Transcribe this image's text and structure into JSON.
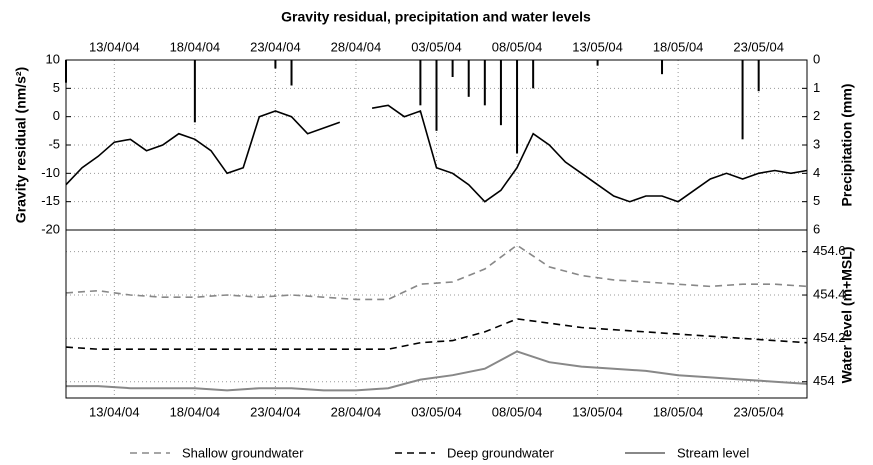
{
  "chart_data": [
    {
      "type": "line",
      "title": "Gravity residual, precipitation and water levels",
      "y_label": "Gravity residual (nm/s²)",
      "y2_label": "Precipitation (mm)",
      "x": [
        "2004-04-10",
        "2004-04-11",
        "2004-04-12",
        "2004-04-13",
        "2004-04-14",
        "2004-04-15",
        "2004-04-16",
        "2004-04-17",
        "2004-04-18",
        "2004-04-19",
        "2004-04-20",
        "2004-04-21",
        "2004-04-22",
        "2004-04-23",
        "2004-04-24",
        "2004-04-25",
        "2004-04-26",
        "2004-04-27",
        "2004-04-28",
        "2004-04-29",
        "2004-04-30",
        "2004-05-01",
        "2004-05-02",
        "2004-05-03",
        "2004-05-04",
        "2004-05-05",
        "2004-05-06",
        "2004-05-07",
        "2004-05-08",
        "2004-05-09",
        "2004-05-10",
        "2004-05-11",
        "2004-05-12",
        "2004-05-13",
        "2004-05-14",
        "2004-05-15",
        "2004-05-16",
        "2004-05-17",
        "2004-05-18",
        "2004-05-19",
        "2004-05-20",
        "2004-05-21",
        "2004-05-22",
        "2004-05-23",
        "2004-05-24",
        "2004-05-25",
        "2004-05-26"
      ],
      "series": [
        {
          "color": "#000000",
          "values": [
            -12,
            -9,
            -7,
            -4.5,
            -4,
            -6,
            -5,
            -3,
            -4,
            -6,
            -10,
            -9,
            0,
            1,
            0,
            -3,
            -2,
            -1,
            null,
            1.5,
            2,
            0,
            1,
            -9,
            -10,
            -12,
            -15,
            -13,
            -9,
            -3,
            -5,
            -8,
            -10,
            -12,
            -14,
            -15,
            -14,
            -14,
            -15,
            -13,
            -11,
            -10,
            -11,
            -10,
            -9.5,
            -10,
            -9.5
          ]
        },
        {
          "type": "bar",
          "axis": "y2",
          "color": "#000000",
          "x": [
            "2004-04-10",
            "2004-04-18",
            "2004-04-23",
            "2004-04-24",
            "2004-05-02",
            "2004-05-03",
            "2004-05-04",
            "2004-05-05",
            "2004-05-06",
            "2004-05-07",
            "2004-05-08",
            "2004-05-09",
            "2004-05-13",
            "2004-05-17",
            "2004-05-22",
            "2004-05-23"
          ],
          "values": [
            0.8,
            2.2,
            0.3,
            0.9,
            1.6,
            2.5,
            0.6,
            1.3,
            1.6,
            2.3,
            3.3,
            1.0,
            0.2,
            0.5,
            2.8,
            1.1
          ]
        }
      ],
      "xlim": [
        "2004-04-10",
        "2004-05-26"
      ],
      "xticks": [
        {
          "value": "2004-04-13",
          "label": "13/04/04"
        },
        {
          "value": "2004-04-18",
          "label": "18/04/04"
        },
        {
          "value": "2004-04-23",
          "label": "23/04/04"
        },
        {
          "value": "2004-04-28",
          "label": "28/04/04"
        },
        {
          "value": "2004-05-03",
          "label": "03/05/04"
        },
        {
          "value": "2004-05-08",
          "label": "08/05/04"
        },
        {
          "value": "2004-05-13",
          "label": "13/05/04"
        },
        {
          "value": "2004-05-18",
          "label": "18/05/04"
        },
        {
          "value": "2004-05-23",
          "label": "23/05/04"
        }
      ],
      "ylim": [
        -20,
        10
      ],
      "yticks": [
        -20,
        -15,
        -10,
        -5,
        0,
        5,
        10
      ],
      "y2lim": [
        6,
        0
      ],
      "y2ticks": [
        6,
        5,
        4,
        3,
        2,
        1,
        0
      ],
      "grid": true
    },
    {
      "type": "line",
      "y2_label": "Water level (m+MSL)",
      "x": [
        "2004-04-10",
        "2004-04-12",
        "2004-04-14",
        "2004-04-16",
        "2004-04-18",
        "2004-04-20",
        "2004-04-22",
        "2004-04-24",
        "2004-04-26",
        "2004-04-28",
        "2004-04-30",
        "2004-05-02",
        "2004-05-04",
        "2004-05-06",
        "2004-05-08",
        "2004-05-10",
        "2004-05-12",
        "2004-05-14",
        "2004-05-16",
        "2004-05-18",
        "2004-05-20",
        "2004-05-22",
        "2004-05-24",
        "2004-05-26"
      ],
      "series": [
        {
          "name": "Shallow groundwater",
          "axis": "y2",
          "color": "#888888",
          "dash": "dashed",
          "values": [
            454.41,
            454.42,
            454.4,
            454.39,
            454.39,
            454.4,
            454.39,
            454.4,
            454.39,
            454.38,
            454.38,
            454.45,
            454.46,
            454.52,
            454.63,
            454.53,
            454.49,
            454.47,
            454.46,
            454.45,
            454.44,
            454.45,
            454.45,
            454.44
          ]
        },
        {
          "name": "Deep groundwater",
          "axis": "y2",
          "color": "#000000",
          "dash": "dashed",
          "values": [
            454.16,
            454.15,
            454.15,
            454.15,
            454.15,
            454.15,
            454.15,
            454.15,
            454.15,
            454.15,
            454.15,
            454.18,
            454.19,
            454.23,
            454.29,
            454.27,
            454.25,
            454.24,
            454.23,
            454.22,
            454.21,
            454.2,
            454.19,
            454.18
          ]
        },
        {
          "name": "Stream level",
          "axis": "y2",
          "color": "#888888",
          "dash": "solid",
          "values": [
            453.98,
            453.98,
            453.97,
            453.97,
            453.97,
            453.96,
            453.97,
            453.97,
            453.96,
            453.96,
            453.97,
            454.01,
            454.03,
            454.06,
            454.14,
            454.09,
            454.07,
            454.06,
            454.05,
            454.03,
            454.02,
            454.01,
            454.0,
            453.99
          ]
        }
      ],
      "xlim": [
        "2004-04-10",
        "2004-05-26"
      ],
      "xticks": [
        {
          "value": "2004-04-13",
          "label": "13/04/04"
        },
        {
          "value": "2004-04-18",
          "label": "18/04/04"
        },
        {
          "value": "2004-04-23",
          "label": "23/04/04"
        },
        {
          "value": "2004-04-28",
          "label": "28/04/04"
        },
        {
          "value": "2004-05-03",
          "label": "03/05/04"
        },
        {
          "value": "2004-05-08",
          "label": "08/05/04"
        },
        {
          "value": "2004-05-13",
          "label": "13/05/04"
        },
        {
          "value": "2004-05-18",
          "label": "18/05/04"
        },
        {
          "value": "2004-05-23",
          "label": "23/05/04"
        }
      ],
      "y2lim": [
        453.925,
        454.7
      ],
      "y2ticks": [
        454,
        454.2,
        454.4,
        454.6
      ],
      "grid": true
    }
  ]
}
